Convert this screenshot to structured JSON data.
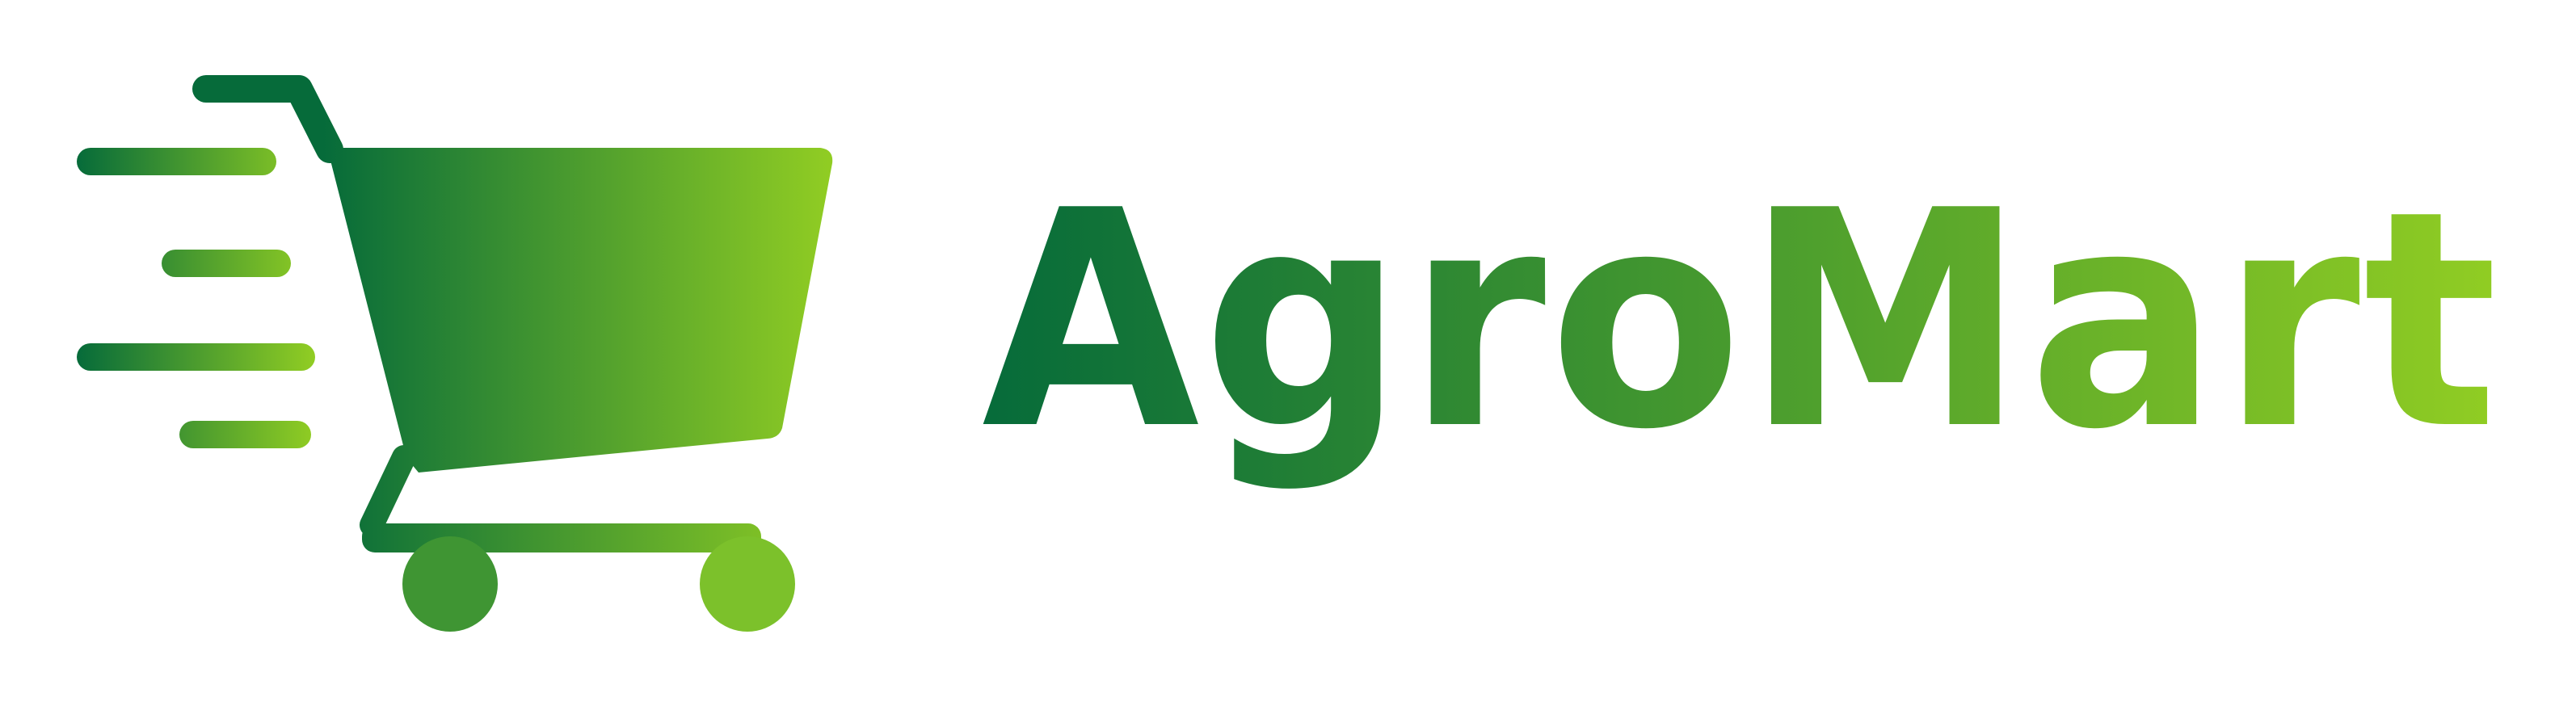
{
  "brand": {
    "wordmark": "AgroMart"
  },
  "icons": {
    "main": "shopping-cart-icon",
    "motion": "speed-lines-icon"
  },
  "colors": {
    "dark_green": "#066B3A",
    "mid_green": "#3F9533",
    "lime_green": "#91CD23",
    "background": "#FFFFFF"
  }
}
